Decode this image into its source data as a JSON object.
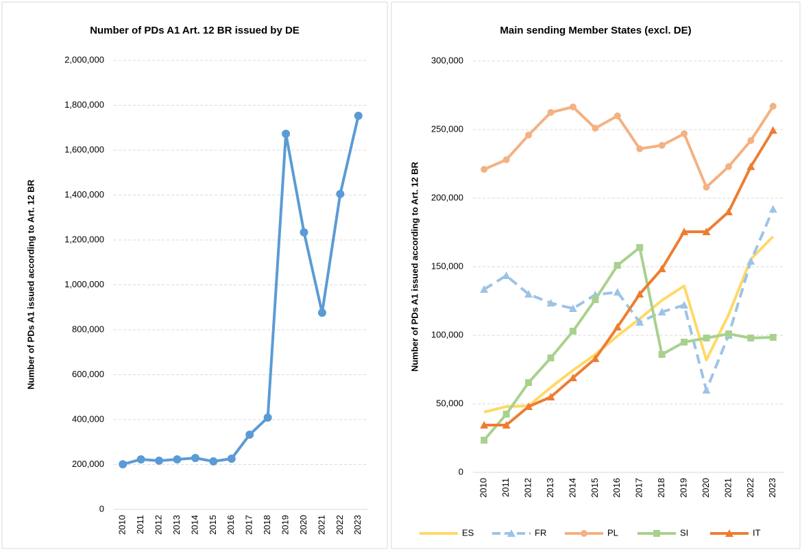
{
  "chart_data": [
    {
      "type": "line",
      "title": "Number of PDs A1 Art. 12 BR issued by DE",
      "y_label": "Number of PDs A1 issued according to Art. 12 BR",
      "categories": [
        "2010",
        "2011",
        "2012",
        "2013",
        "2014",
        "2015",
        "2016",
        "2017",
        "2018",
        "2019",
        "2020",
        "2021",
        "2022",
        "2023"
      ],
      "values": [
        201000,
        223000,
        217000,
        223000,
        229000,
        214000,
        226000,
        333000,
        409000,
        1673000,
        1234000,
        876000,
        1405000,
        1753000
      ],
      "color": "#5b9bd5",
      "marker": "circle",
      "ylim": [
        0,
        2000000
      ],
      "yticks": [
        0,
        {
          "value": 200000,
          "label": "200,000"
        },
        {
          "value": 400000,
          "label": "400,000"
        },
        {
          "value": 600000,
          "label": "600,000"
        },
        {
          "value": 800000,
          "label": "800,000"
        },
        {
          "value": 1000000,
          "label": "1,000,000"
        },
        {
          "value": 1200000,
          "label": "1,200,000"
        },
        {
          "value": 1400000,
          "label": "1,400,000"
        },
        {
          "value": 1600000,
          "label": "1,600,000"
        },
        {
          "value": 1800000,
          "label": "1,800,000"
        },
        {
          "value": 2000000,
          "label": "2,000,000"
        }
      ],
      "grid": true
    },
    {
      "type": "line",
      "title": "Main sending Member States (excl. DE)",
      "y_label": "Number of PDs A1 issued according to Art. 12 BR",
      "categories": [
        "2010",
        "2011",
        "2012",
        "2013",
        "2014",
        "2015",
        "2016",
        "2017",
        "2018",
        "2019",
        "2020",
        "2021",
        "2022",
        "2023"
      ],
      "series": [
        {
          "name": "ES",
          "color": "#ffd966",
          "marker": "none",
          "dashed": false,
          "values": [
            44000,
            48000,
            48500,
            62000,
            74500,
            86000,
            99500,
            112000,
            125500,
            136000,
            82000,
            115000,
            155500,
            172000
          ]
        },
        {
          "name": "FR",
          "color": "#9dc3e6",
          "marker": "triangle",
          "dashed": true,
          "values": [
            133500,
            143500,
            130000,
            123500,
            119500,
            129500,
            131500,
            109500,
            117000,
            122000,
            60000,
            100000,
            154000,
            192000
          ]
        },
        {
          "name": "PL",
          "color": "#f4b183",
          "marker": "circle",
          "dashed": false,
          "values": [
            221000,
            228000,
            246000,
            262500,
            266500,
            251000,
            260000,
            236000,
            238500,
            247000,
            208000,
            223000,
            242000,
            267000
          ]
        },
        {
          "name": "SI",
          "color": "#a9d18e",
          "marker": "square",
          "dashed": false,
          "values": [
            23500,
            42500,
            65500,
            83500,
            103000,
            126000,
            151000,
            164000,
            86000,
            95000,
            98000,
            101000,
            98000,
            98500
          ]
        },
        {
          "name": "IT",
          "color": "#ed7d31",
          "marker": "triangle",
          "dashed": false,
          "values": [
            34500,
            34500,
            48000,
            55000,
            69000,
            83000,
            106000,
            130000,
            148500,
            175500,
            175500,
            190000,
            223000,
            249500
          ]
        }
      ],
      "ylim": [
        0,
        300000
      ],
      "yticks": [
        0,
        {
          "value": 50000,
          "label": "50,000"
        },
        {
          "value": 100000,
          "label": "100,000"
        },
        {
          "value": 150000,
          "label": "150,000"
        },
        {
          "value": 200000,
          "label": "200,000"
        },
        {
          "value": 250000,
          "label": "250,000"
        },
        {
          "value": 300000,
          "label": "300,000"
        }
      ],
      "grid": true,
      "legend": "bottom"
    }
  ]
}
